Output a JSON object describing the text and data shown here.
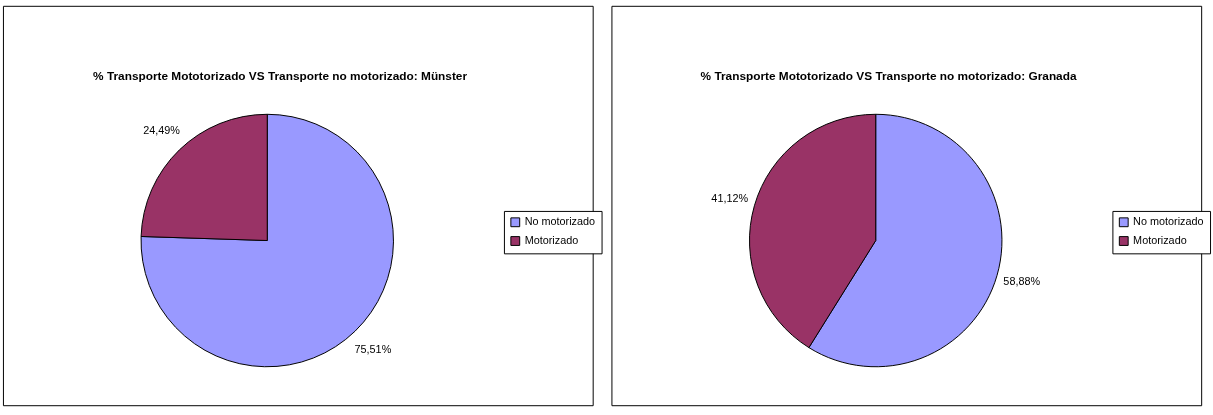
{
  "chart_data": [
    {
      "type": "pie",
      "title": "% Transporte Mototorizado VS Transporte no motorizado: Münster",
      "categories": [
        "No motorizado",
        "Motorizado"
      ],
      "values": [
        75.51,
        24.49
      ],
      "colors": [
        "#9999ff",
        "#993366"
      ],
      "value_labels": [
        "75,51%",
        "24,49%"
      ],
      "legend": "right"
    },
    {
      "type": "pie",
      "title": "% Transporte Mototorizado VS Transporte no motorizado: Granada",
      "categories": [
        "No motorizado",
        "Motorizado"
      ],
      "values": [
        58.88,
        41.12
      ],
      "colors": [
        "#9999ff",
        "#993366"
      ],
      "value_labels": [
        "58,88%",
        "41,12%"
      ],
      "legend": "right"
    }
  ]
}
